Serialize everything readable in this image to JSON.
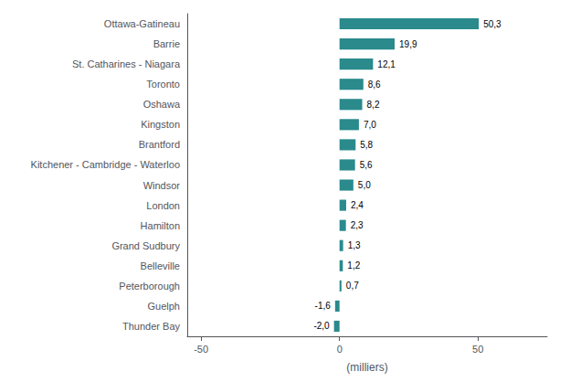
{
  "chart_data": {
    "type": "bar",
    "orientation": "horizontal",
    "categories": [
      "Thunder Bay",
      "Guelph",
      "Peterborough",
      "Belleville",
      "Grand Sudbury",
      "Hamilton",
      "London",
      "Windsor",
      "Kitchener - Cambridge - Waterloo",
      "Brantford",
      "Kingston",
      "Oshawa",
      "Toronto",
      "St. Catharines - Niagara",
      "Barrie",
      "Ottawa-Gatineau"
    ],
    "values": [
      -2.0,
      -1.6,
      0.7,
      1.2,
      1.3,
      2.3,
      2.4,
      5.0,
      5.6,
      5.8,
      7.0,
      8.2,
      8.6,
      12.1,
      19.9,
      50.3
    ],
    "value_labels": [
      "-2,0",
      "-1,6",
      "0,7",
      "1,2",
      "1,3",
      "2,3",
      "2,4",
      "5,0",
      "5,6",
      "5,8",
      "7,0",
      "8,2",
      "8,6",
      "12,1",
      "19,9",
      "50,3"
    ],
    "data_labels": true,
    "color": "#2a8a8c",
    "xlabel": "(milliers)",
    "xlim": [
      -55,
      75
    ],
    "xticks": [
      -50,
      0,
      50
    ],
    "grid": false
  }
}
